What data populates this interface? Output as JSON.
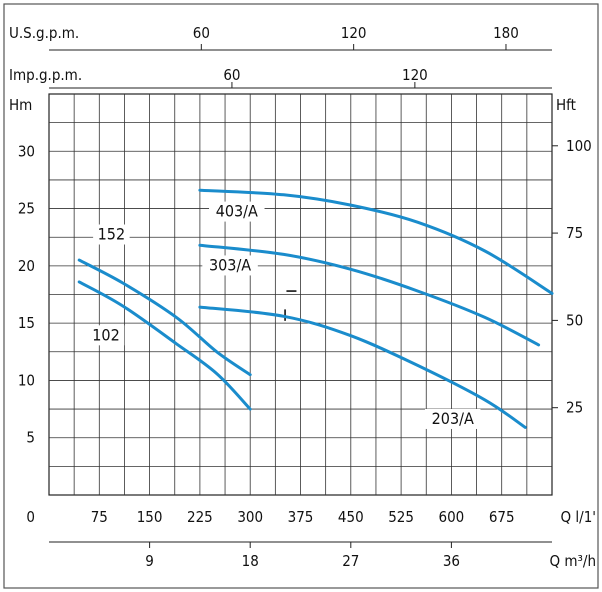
{
  "chart_data": {
    "type": "line",
    "axes": {
      "usgpm": {
        "label": "U.S.g.p.m.",
        "ticks": [
          "60",
          "120",
          "180"
        ]
      },
      "impgpm": {
        "label": "Imp.g.p.m.",
        "ticks": [
          "60",
          "120"
        ]
      },
      "left": {
        "label": "Hm",
        "ticks": [
          "0",
          "5",
          "10",
          "15",
          "20",
          "25",
          "30"
        ],
        "range": [
          0,
          35
        ]
      },
      "right": {
        "label": "Hft",
        "ticks": [
          "25",
          "50",
          "75",
          "100"
        ]
      },
      "bottom_lpm": {
        "label": "Q  l/1'",
        "ticks": [
          "75",
          "150",
          "225",
          "300",
          "375",
          "450",
          "525",
          "600",
          "675"
        ],
        "range": [
          0,
          750
        ]
      },
      "bottom_m3h": {
        "label": "Q  m³/h",
        "ticks": [
          "9",
          "18",
          "27",
          "36"
        ]
      }
    },
    "grid": true,
    "series": [
      {
        "name": "152",
        "x": [
          45,
          110,
          190,
          250,
          300
        ],
        "y": [
          20.5,
          18.5,
          15.5,
          12.5,
          10.5
        ]
      },
      {
        "name": "102",
        "x": [
          45,
          110,
          190,
          250,
          300
        ],
        "y": [
          18.6,
          16.5,
          13.2,
          10.6,
          7.5
        ]
      },
      {
        "name": "403/A",
        "x": [
          225,
          350,
          450,
          550,
          650,
          750
        ],
        "y": [
          26.6,
          26.2,
          25.3,
          23.8,
          21.3,
          17.6
        ]
      },
      {
        "name": "303/A",
        "x": [
          225,
          350,
          450,
          550,
          650,
          730
        ],
        "y": [
          21.8,
          21.0,
          19.7,
          17.8,
          15.5,
          13.1
        ]
      },
      {
        "name": "203/A",
        "x": [
          225,
          350,
          450,
          550,
          650,
          710
        ],
        "y": [
          16.4,
          15.6,
          13.9,
          11.3,
          8.3,
          5.9
        ]
      }
    ],
    "color": "#1a8ccc"
  }
}
